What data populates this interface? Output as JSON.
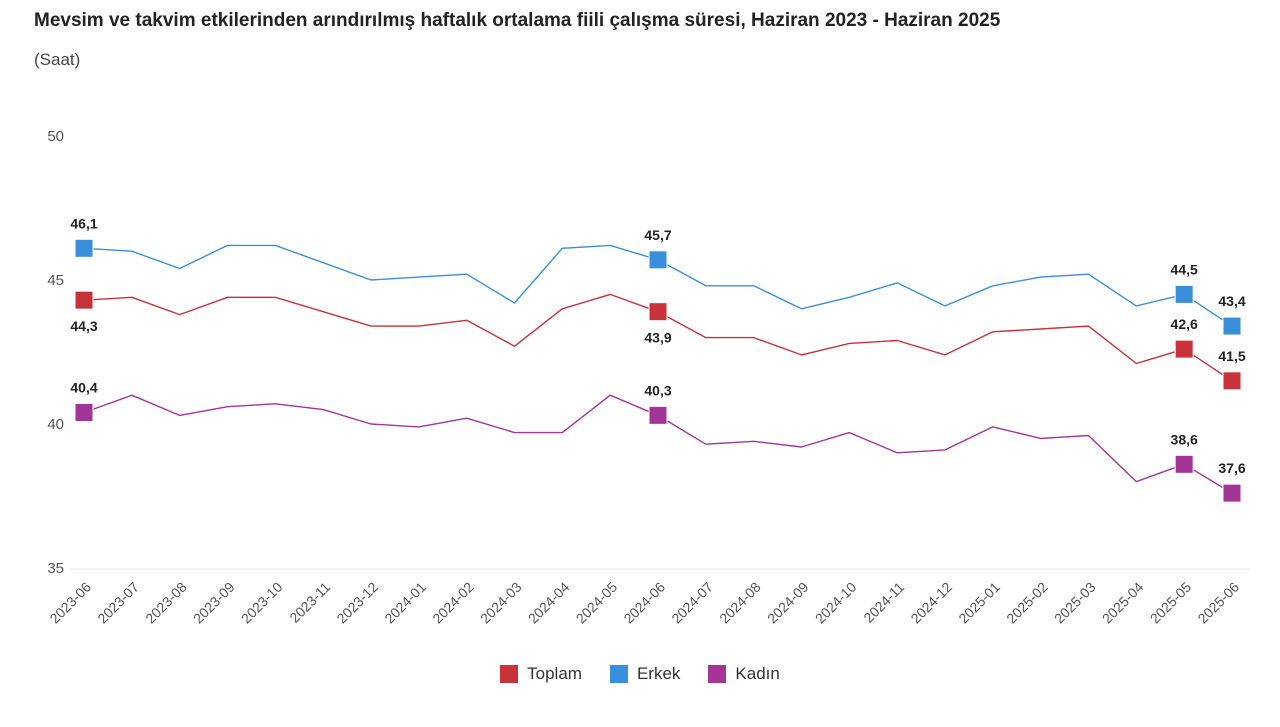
{
  "chart_data": {
    "type": "line",
    "title": "Mevsim ve takvim etkilerinden arındırılmış haftalık ortalama fiili çalışma süresi, Haziran 2023 - Haziran 2025",
    "subtitle": "(Saat)",
    "xlabel": "",
    "ylabel": "",
    "ylim": [
      35,
      50
    ],
    "yticks": [
      35,
      40,
      45,
      50
    ],
    "legend_position": "bottom",
    "grid": false,
    "categories": [
      "2023-06",
      "2023-07",
      "2023-08",
      "2023-09",
      "2023-10",
      "2023-11",
      "2023-12",
      "2024-01",
      "2024-02",
      "2024-03",
      "2024-04",
      "2024-05",
      "2024-06",
      "2024-07",
      "2024-08",
      "2024-09",
      "2024-10",
      "2024-11",
      "2024-12",
      "2025-01",
      "2025-02",
      "2025-03",
      "2025-04",
      "2025-05",
      "2025-06"
    ],
    "series": [
      {
        "name": "Toplam",
        "color": "#c8323a",
        "values": [
          44.3,
          44.4,
          43.8,
          44.4,
          44.4,
          43.9,
          43.4,
          43.4,
          43.6,
          42.7,
          44.0,
          44.5,
          43.9,
          43.0,
          43.0,
          42.4,
          42.8,
          42.9,
          42.4,
          43.2,
          43.3,
          43.4,
          42.1,
          42.6,
          41.5
        ]
      },
      {
        "name": "Erkek",
        "color": "#3a8fdc",
        "values": [
          46.1,
          46.0,
          45.4,
          46.2,
          46.2,
          45.6,
          45.0,
          45.1,
          45.2,
          44.2,
          46.1,
          46.2,
          45.7,
          44.8,
          44.8,
          44.0,
          44.4,
          44.9,
          44.1,
          44.8,
          45.1,
          45.2,
          44.1,
          44.5,
          43.4
        ]
      },
      {
        "name": "Kadın",
        "color": "#a33596",
        "values": [
          40.4,
          41.0,
          40.3,
          40.6,
          40.7,
          40.5,
          40.0,
          39.9,
          40.2,
          39.7,
          39.7,
          41.0,
          40.3,
          39.3,
          39.4,
          39.2,
          39.7,
          39.0,
          39.1,
          39.9,
          39.5,
          39.6,
          38.0,
          38.6,
          37.6
        ]
      }
    ],
    "data_labels": [
      {
        "series": 0,
        "index": 0,
        "text": "44,3",
        "pos": "below"
      },
      {
        "series": 0,
        "index": 12,
        "text": "43,9",
        "pos": "below"
      },
      {
        "series": 0,
        "index": 23,
        "text": "42,6",
        "pos": "above"
      },
      {
        "series": 0,
        "index": 24,
        "text": "41,5",
        "pos": "above"
      },
      {
        "series": 1,
        "index": 0,
        "text": "46,1",
        "pos": "above"
      },
      {
        "series": 1,
        "index": 12,
        "text": "45,7",
        "pos": "above"
      },
      {
        "series": 1,
        "index": 23,
        "text": "44,5",
        "pos": "above"
      },
      {
        "series": 1,
        "index": 24,
        "text": "43,4",
        "pos": "above"
      },
      {
        "series": 2,
        "index": 0,
        "text": "40,4",
        "pos": "above"
      },
      {
        "series": 2,
        "index": 12,
        "text": "40,3",
        "pos": "above"
      },
      {
        "series": 2,
        "index": 23,
        "text": "38,6",
        "pos": "above"
      },
      {
        "series": 2,
        "index": 24,
        "text": "37,6",
        "pos": "above"
      }
    ],
    "markers_at": [
      0,
      12,
      23,
      24
    ]
  }
}
